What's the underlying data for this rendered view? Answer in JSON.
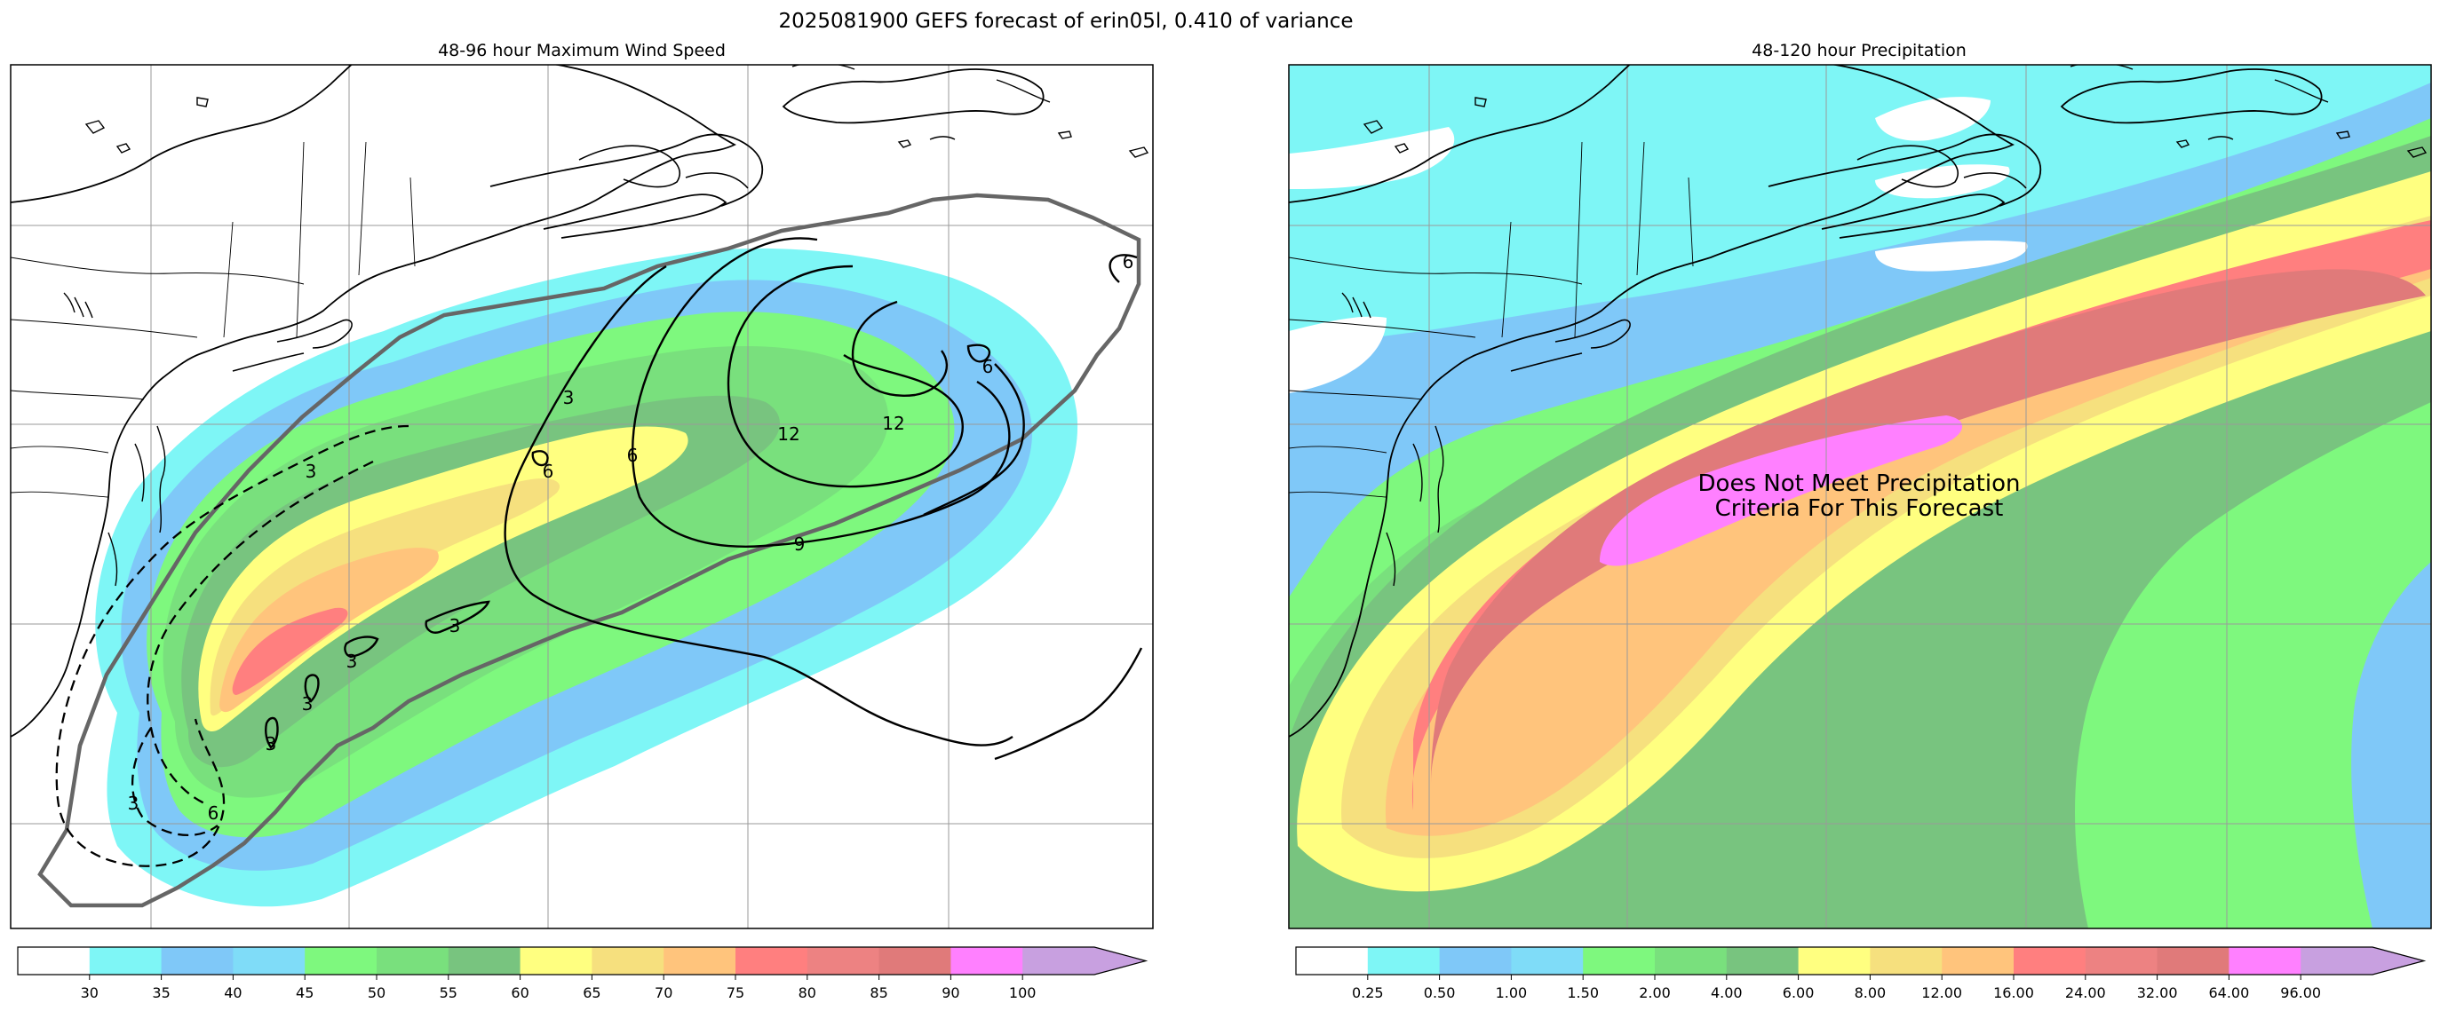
{
  "figure": {
    "title": "2025081900 GEFS forecast of erin05l, 0.410 of variance"
  },
  "panels": [
    {
      "id": "wind",
      "title": "48-96 hour Maximum Wind Speed",
      "colorbar": {
        "ticks": [
          "30",
          "35",
          "40",
          "45",
          "50",
          "55",
          "60",
          "65",
          "70",
          "75",
          "80",
          "85",
          "90",
          "100"
        ],
        "colors": [
          "#ffffff",
          "#7ef6f6",
          "#7fc8f8",
          "#7fdcf8",
          "#7ef87e",
          "#79e07d",
          "#78c47f",
          "#ffff80",
          "#f6e07e",
          "#ffc47c",
          "#ff7f7f",
          "#ed8282",
          "#e07a7a",
          "#ff80ff",
          "#c8a0e0"
        ],
        "extend": "max"
      },
      "contour_labels": [
        "3",
        "3",
        "3",
        "3",
        "3",
        "3",
        "3",
        "6",
        "6",
        "6",
        "6",
        "6",
        "9",
        "12",
        "12"
      ]
    },
    {
      "id": "precip",
      "title": "48-120 hour Precipitation",
      "annotation": [
        "Does Not Meet Precipitation",
        "Criteria For This Forecast"
      ],
      "colorbar": {
        "ticks": [
          "0.25",
          "0.50",
          "1.00",
          "1.50",
          "2.00",
          "4.00",
          "6.00",
          "8.00",
          "12.00",
          "16.00",
          "24.00",
          "32.00",
          "64.00",
          "96.00"
        ],
        "colors": [
          "#ffffff",
          "#7ef6f6",
          "#7fc8f8",
          "#7fdcf8",
          "#7ef87e",
          "#79e07d",
          "#78c47f",
          "#ffff80",
          "#f6e07e",
          "#ffc47c",
          "#ff7f7f",
          "#ed8282",
          "#e07a7a",
          "#ff80ff",
          "#c8a0e0"
        ],
        "extend": "max"
      }
    }
  ],
  "map_colors": {
    "land_outline": "#000000",
    "grid": "#9a9a9a",
    "ensemble_outline": "#666666"
  }
}
